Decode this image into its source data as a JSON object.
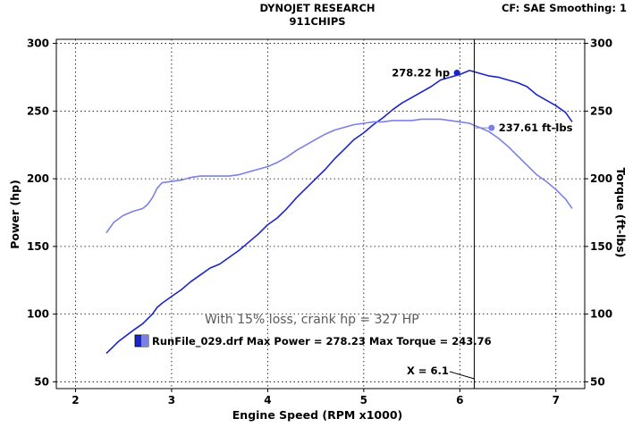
{
  "header": {
    "title": "DYNOJET RESEARCH",
    "subtitle": "911CHIPS",
    "status": "CF: SAE  Smoothing: 1"
  },
  "colors": {
    "power": "#1a26c8",
    "torque": "#7b80e6",
    "cursor": "#000000",
    "grid": "#000000",
    "note": "#5a5a5a"
  },
  "cursor_label": "X = 6.1",
  "note_text": "With 15% loss, crank hp = 327 HP",
  "legend": {
    "text": "RunFile_029.drf Max Power = 278.23 Max Torque = 243.76"
  },
  "annotations": {
    "power_marker": "278.22 hp",
    "torque_marker": "237.61 ft-lbs"
  },
  "chart_data": {
    "type": "line",
    "title": "DYNOJET RESEARCH",
    "subtitle": "911CHIPS",
    "xlabel": "Engine Speed (RPM x1000)",
    "ylabel_left": "Power (hp)",
    "ylabel_right": "Torque (ft-lbs)",
    "xlim": [
      1.8,
      7.3
    ],
    "ylim": [
      45,
      303
    ],
    "x_ticks": [
      2,
      3,
      4,
      5,
      6,
      7
    ],
    "y_ticks": [
      50,
      100,
      150,
      200,
      250,
      300
    ],
    "grid": "dotted",
    "cursor_x": 6.15,
    "series": [
      {
        "name": "Power (hp)",
        "color": "#1a26c8",
        "x": [
          2.32,
          2.45,
          2.6,
          2.7,
          2.8,
          2.85,
          2.9,
          3.0,
          3.1,
          3.2,
          3.3,
          3.4,
          3.5,
          3.6,
          3.7,
          3.8,
          3.9,
          4.0,
          4.1,
          4.2,
          4.3,
          4.4,
          4.5,
          4.6,
          4.7,
          4.8,
          4.9,
          5.0,
          5.1,
          5.2,
          5.3,
          5.4,
          5.5,
          5.6,
          5.7,
          5.8,
          5.9,
          6.0,
          6.1,
          6.2,
          6.3,
          6.4,
          6.5,
          6.6,
          6.7,
          6.8,
          6.9,
          7.0,
          7.1,
          7.17
        ],
        "values": [
          71,
          80,
          88,
          93,
          100,
          105,
          108,
          113,
          118,
          124,
          129,
          134,
          137,
          142,
          147,
          153,
          159,
          166,
          171,
          178,
          186,
          193,
          200,
          207,
          215,
          222,
          229,
          234,
          240,
          245,
          251,
          256,
          260,
          264,
          268,
          273,
          275,
          277,
          280,
          278,
          276,
          275,
          273,
          271,
          268,
          262,
          258,
          254,
          249,
          242
        ]
      },
      {
        "name": "Torque (ft-lbs)",
        "color": "#7b80e6",
        "x": [
          2.32,
          2.4,
          2.5,
          2.6,
          2.7,
          2.75,
          2.8,
          2.85,
          2.9,
          3.0,
          3.1,
          3.2,
          3.3,
          3.4,
          3.5,
          3.6,
          3.7,
          3.8,
          3.9,
          4.0,
          4.1,
          4.2,
          4.3,
          4.4,
          4.5,
          4.6,
          4.7,
          4.8,
          4.9,
          5.0,
          5.1,
          5.2,
          5.3,
          5.4,
          5.5,
          5.6,
          5.7,
          5.8,
          5.9,
          6.0,
          6.1,
          6.2,
          6.3,
          6.4,
          6.5,
          6.6,
          6.7,
          6.8,
          6.9,
          7.0,
          7.1,
          7.17
        ],
        "values": [
          160,
          168,
          173,
          176,
          178,
          181,
          186,
          193,
          197,
          198,
          199,
          201,
          202,
          202,
          202,
          202,
          203,
          205,
          207,
          209,
          212,
          216,
          221,
          225,
          229,
          233,
          236,
          238,
          240,
          241,
          242,
          242,
          243,
          243,
          243,
          244,
          244,
          244,
          243,
          242,
          241,
          238,
          235,
          230,
          224,
          217,
          210,
          203,
          198,
          192,
          185,
          178
        ]
      }
    ]
  }
}
